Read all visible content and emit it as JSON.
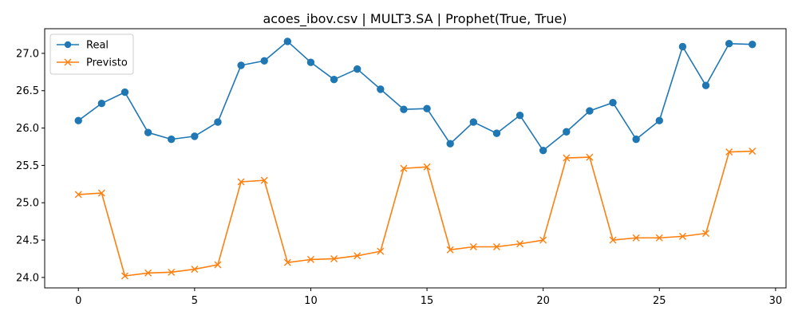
{
  "chart_data": {
    "type": "line",
    "title": "acoes_ibov.csv | MULT3.SA | Prophet(True, True)",
    "xlabel": "",
    "ylabel": "",
    "xlim": [
      -1.45,
      30.45
    ],
    "ylim": [
      23.86,
      27.33
    ],
    "x_ticks": [
      0,
      5,
      10,
      15,
      20,
      25,
      30
    ],
    "y_ticks": [
      24.0,
      24.5,
      25.0,
      25.5,
      26.0,
      26.5,
      27.0
    ],
    "y_tick_labels": [
      "24.0",
      "24.5",
      "25.0",
      "25.5",
      "26.0",
      "26.5",
      "27.0"
    ],
    "grid": false,
    "legend_position": "top-left",
    "x": [
      0,
      1,
      2,
      3,
      4,
      5,
      6,
      7,
      8,
      9,
      10,
      11,
      12,
      13,
      14,
      15,
      16,
      17,
      18,
      19,
      20,
      21,
      22,
      23,
      24,
      25,
      26,
      27,
      28,
      29
    ],
    "series": [
      {
        "name": "Real",
        "color": "#1f77b4",
        "marker": "circle",
        "values": [
          26.1,
          26.33,
          26.48,
          25.94,
          25.85,
          25.89,
          26.08,
          26.84,
          26.9,
          27.16,
          26.88,
          26.65,
          26.79,
          26.52,
          26.25,
          26.26,
          25.79,
          26.08,
          25.93,
          26.17,
          25.7,
          25.95,
          26.23,
          26.34,
          25.85,
          26.1,
          27.09,
          26.57,
          27.13,
          27.12
        ]
      },
      {
        "name": "Previsto",
        "color": "#ff7f0e",
        "marker": "x",
        "values": [
          25.11,
          25.13,
          24.02,
          24.06,
          24.07,
          24.11,
          24.17,
          25.28,
          25.3,
          24.2,
          24.24,
          24.25,
          24.29,
          24.35,
          25.46,
          25.48,
          24.37,
          24.41,
          24.41,
          24.45,
          24.5,
          25.6,
          25.61,
          24.5,
          24.53,
          24.53,
          24.55,
          24.59,
          25.68,
          25.69
        ]
      }
    ]
  }
}
